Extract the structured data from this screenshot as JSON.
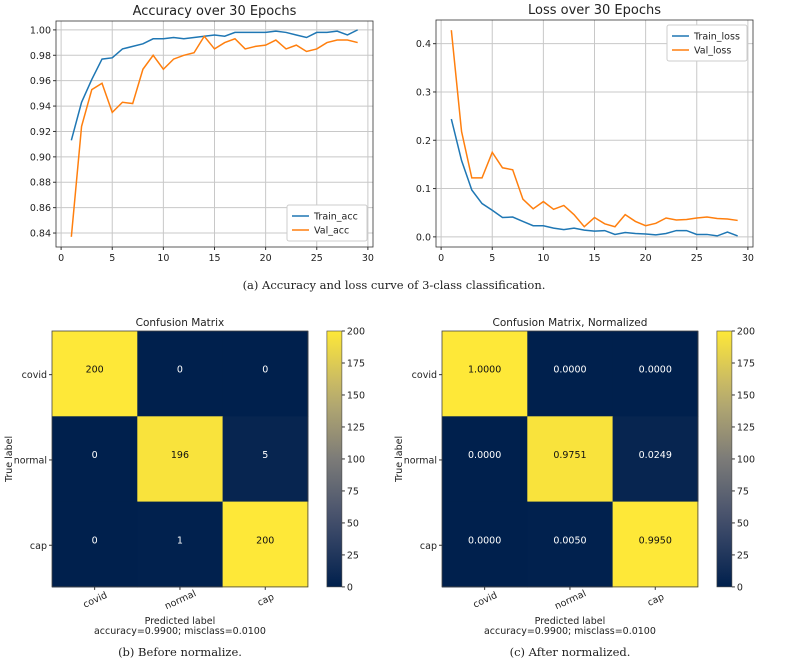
{
  "chart_data": [
    {
      "type": "line",
      "title": "Accuracy over 30 Epochs",
      "xlabel": "",
      "ylabel": "",
      "xlim": [
        -0.5,
        30.5
      ],
      "ylim": [
        0.829,
        1.007
      ],
      "xticks": [
        0,
        5,
        10,
        15,
        20,
        25,
        30
      ],
      "yticks": [
        0.84,
        0.86,
        0.88,
        0.9,
        0.92,
        0.94,
        0.96,
        0.98,
        1.0
      ],
      "ytick_labels": [
        "0.84",
        "0.86",
        "0.88",
        "0.90",
        "0.92",
        "0.94",
        "0.96",
        "0.98",
        "1.00"
      ],
      "grid": true,
      "legend": "bottom-right",
      "x": [
        1,
        2,
        3,
        4,
        5,
        6,
        7,
        8,
        9,
        10,
        11,
        12,
        13,
        14,
        15,
        16,
        17,
        18,
        19,
        20,
        21,
        22,
        23,
        24,
        25,
        26,
        27,
        28,
        29
      ],
      "series": [
        {
          "name": "Train_acc",
          "color": "#1f77b4",
          "values": [
            0.913,
            0.943,
            0.961,
            0.977,
            0.978,
            0.985,
            0.987,
            0.989,
            0.993,
            0.993,
            0.994,
            0.993,
            0.994,
            0.995,
            0.996,
            0.995,
            0.998,
            0.998,
            0.998,
            0.998,
            0.999,
            0.998,
            0.996,
            0.994,
            0.998,
            0.998,
            0.999,
            0.996,
            1.0
          ]
        },
        {
          "name": "Val_acc",
          "color": "#ff7f0e",
          "values": [
            0.837,
            0.924,
            0.953,
            0.958,
            0.935,
            0.943,
            0.942,
            0.969,
            0.98,
            0.969,
            0.977,
            0.98,
            0.982,
            0.995,
            0.985,
            0.99,
            0.993,
            0.985,
            0.987,
            0.988,
            0.992,
            0.985,
            0.988,
            0.983,
            0.985,
            0.99,
            0.992,
            0.992,
            0.99
          ]
        }
      ]
    },
    {
      "type": "line",
      "title": "Loss over 30 Epochs",
      "xlabel": "",
      "ylabel": "",
      "xlim": [
        -0.5,
        30.5
      ],
      "ylim": [
        -0.021,
        0.449
      ],
      "xticks": [
        0,
        5,
        10,
        15,
        20,
        25,
        30
      ],
      "yticks": [
        0.0,
        0.1,
        0.2,
        0.3,
        0.4
      ],
      "ytick_labels": [
        "0.0",
        "0.1",
        "0.2",
        "0.3",
        "0.4"
      ],
      "grid": true,
      "legend": "top-right",
      "x": [
        1,
        2,
        3,
        4,
        5,
        6,
        7,
        8,
        9,
        10,
        11,
        12,
        13,
        14,
        15,
        16,
        17,
        18,
        19,
        20,
        21,
        22,
        23,
        24,
        25,
        26,
        27,
        28,
        29
      ],
      "series": [
        {
          "name": "Train_loss",
          "color": "#1f77b4",
          "values": [
            0.244,
            0.158,
            0.097,
            0.069,
            0.055,
            0.04,
            0.041,
            0.032,
            0.023,
            0.023,
            0.018,
            0.015,
            0.018,
            0.014,
            0.012,
            0.013,
            0.005,
            0.009,
            0.007,
            0.006,
            0.004,
            0.007,
            0.013,
            0.013,
            0.005,
            0.005,
            0.002,
            0.01,
            0.002
          ]
        },
        {
          "name": "Val_loss",
          "color": "#ff7f0e",
          "values": [
            0.428,
            0.218,
            0.122,
            0.122,
            0.175,
            0.143,
            0.139,
            0.078,
            0.058,
            0.073,
            0.057,
            0.065,
            0.046,
            0.021,
            0.04,
            0.027,
            0.021,
            0.046,
            0.032,
            0.023,
            0.028,
            0.039,
            0.035,
            0.036,
            0.039,
            0.041,
            0.038,
            0.037,
            0.034
          ]
        }
      ]
    },
    {
      "type": "heatmap",
      "title": "Confusion Matrix",
      "xlabel": "Predicted label",
      "subtitle": "accuracy=0.9900; misclass=0.0100",
      "ylabel": "True label",
      "classes": [
        "covid",
        "normal",
        "cap"
      ],
      "matrix": [
        [
          200,
          0,
          0
        ],
        [
          0,
          196,
          5
        ],
        [
          0,
          1,
          200
        ]
      ],
      "cell_labels": [
        [
          "200",
          "0",
          "0"
        ],
        [
          "0",
          "196",
          "5"
        ],
        [
          "0",
          "1",
          "200"
        ]
      ],
      "colorbar": {
        "range": [
          0,
          200
        ],
        "ticks": [
          "0",
          "25",
          "50",
          "75",
          "100",
          "125",
          "150",
          "175",
          "200"
        ]
      }
    },
    {
      "type": "heatmap",
      "title": "Confusion Matrix, Normalized",
      "xlabel": "Predicted label",
      "subtitle": "accuracy=0.9900; misclass=0.0100",
      "ylabel": "True label",
      "classes": [
        "covid",
        "normal",
        "cap"
      ],
      "matrix": [
        [
          200,
          0,
          0
        ],
        [
          0,
          196,
          5
        ],
        [
          0,
          1,
          200
        ]
      ],
      "cell_labels": [
        [
          "1.0000",
          "0.0000",
          "0.0000"
        ],
        [
          "0.0000",
          "0.9751",
          "0.0249"
        ],
        [
          "0.0000",
          "0.0050",
          "0.9950"
        ]
      ],
      "colorbar": {
        "range": [
          0,
          200
        ],
        "ticks": [
          "0",
          "25",
          "50",
          "75",
          "100",
          "125",
          "150",
          "175",
          "200"
        ]
      }
    }
  ],
  "captions": {
    "a": "(a) Accuracy and loss curve of 3-class classification.",
    "b": "(b) Before normalize.",
    "c": "(c) After normalized."
  }
}
